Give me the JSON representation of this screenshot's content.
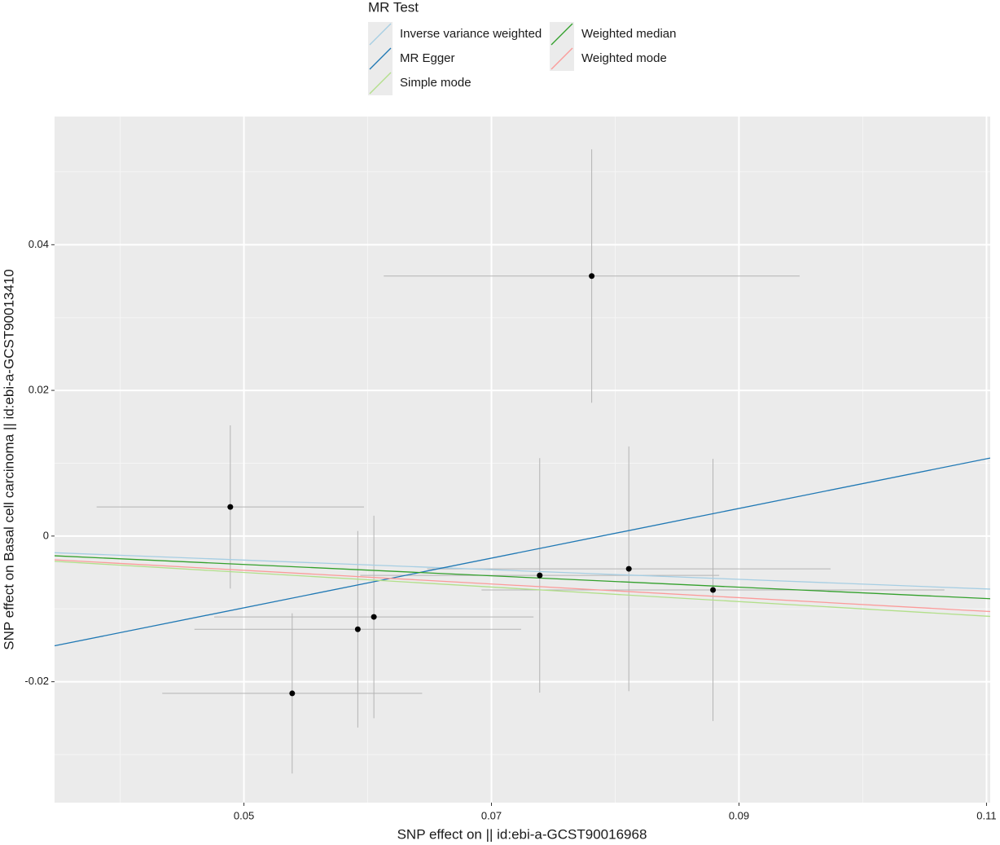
{
  "chart_data": {
    "type": "scatter",
    "x_label": "SNP effect on  || id:ebi-a-GCST90016968",
    "y_label": "SNP effect on Basal cell carcinoma || id:ebi-a-GCST90013410",
    "legend_title": "MR Test",
    "x": [
      0.0489,
      0.0539,
      0.0592,
      0.0605,
      0.0739,
      0.0781,
      0.0811,
      0.0879
    ],
    "values": [
      0.004,
      -0.0216,
      -0.0128,
      -0.0111,
      -0.0054,
      0.0357,
      -0.0045,
      -0.0074
    ],
    "xerr": [
      0.0108,
      0.0105,
      0.0132,
      0.0129,
      0.0145,
      0.0168,
      0.0163,
      0.0187
    ],
    "yerr": [
      0.0112,
      0.011,
      0.0135,
      0.0139,
      0.0161,
      0.0174,
      0.0168,
      0.018
    ],
    "point_color": "#000000",
    "errorbar_color": "#b3b3b3",
    "lines": [
      {
        "name": "Inverse variance weighted",
        "color": "#a6cee3",
        "slope": -0.066,
        "intercept": 0
      },
      {
        "name": "MR Egger",
        "color": "#1f78b4",
        "slope": 0.341,
        "intercept": -0.0269
      },
      {
        "name": "Simple mode",
        "color": "#b2df8a",
        "slope": -0.1,
        "intercept": 0
      },
      {
        "name": "Weighted median",
        "color": "#33a02c",
        "slope": -0.078,
        "intercept": 0
      },
      {
        "name": "Weighted mode",
        "color": "#fb9a99",
        "slope": -0.094,
        "intercept": 0
      }
    ],
    "xlim": [
      0.0347,
      0.1103
    ],
    "ylim": [
      -0.0366,
      0.0576
    ],
    "xticks": [
      0.05,
      0.07,
      0.09,
      0.11
    ],
    "yticks": [
      -0.02,
      0.0,
      0.02,
      0.04
    ],
    "grid": true
  }
}
